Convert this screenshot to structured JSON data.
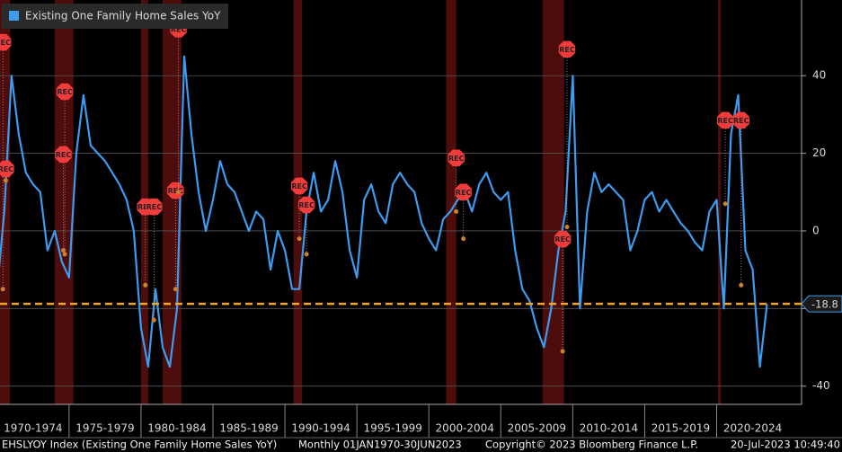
{
  "chart_data": {
    "type": "line",
    "footer_left": "EHSLYOY Index (Existing One Family Home Sales YoY)",
    "footer_mid": "Monthly 01JAN1970-30JUN2023",
    "footer_copyright": "Copyright© 2023 Bloomberg Finance L.P.",
    "footer_time": "20-Jul-2023 10:49:40",
    "x": [
      1970.0,
      1970.5,
      1971.0,
      1971.5,
      1972.0,
      1972.5,
      1973.0,
      1973.5,
      1974.0,
      1974.5,
      1975.0,
      1975.5,
      1976.0,
      1976.5,
      1977.0,
      1977.5,
      1978.0,
      1978.5,
      1979.0,
      1979.5,
      1980.0,
      1980.5,
      1981.0,
      1981.5,
      1982.0,
      1982.5,
      1983.0,
      1983.5,
      1984.0,
      1984.5,
      1985.0,
      1985.5,
      1986.0,
      1986.5,
      1987.0,
      1987.5,
      1988.0,
      1988.5,
      1989.0,
      1989.5,
      1990.0,
      1990.5,
      1991.0,
      1991.5,
      1992.0,
      1992.5,
      1993.0,
      1993.5,
      1994.0,
      1994.5,
      1995.0,
      1995.5,
      1996.0,
      1996.5,
      1997.0,
      1997.5,
      1998.0,
      1998.5,
      1999.0,
      1999.5,
      2000.0,
      2000.5,
      2001.0,
      2001.5,
      2002.0,
      2002.5,
      2003.0,
      2003.5,
      2004.0,
      2004.5,
      2005.0,
      2005.5,
      2006.0,
      2006.5,
      2007.0,
      2007.5,
      2008.0,
      2008.5,
      2009.0,
      2009.5,
      2010.0,
      2010.5,
      2011.0,
      2011.5,
      2012.0,
      2012.5,
      2013.0,
      2013.5,
      2014.0,
      2014.5,
      2015.0,
      2015.5,
      2016.0,
      2016.5,
      2017.0,
      2017.5,
      2018.0,
      2018.5,
      2019.0,
      2019.5,
      2020.0,
      2020.5,
      2021.0,
      2021.5,
      2022.0,
      2022.5,
      2023.0,
      2023.5
    ],
    "series": [
      {
        "name": "Existing One Family Home Sales YoY",
        "color": "#3d9bf0",
        "values": [
          -15,
          5,
          40,
          25,
          15,
          12,
          10,
          -5,
          0,
          -8,
          -12,
          20,
          35,
          22,
          20,
          18,
          15,
          12,
          8,
          0,
          -25,
          -35,
          -15,
          -30,
          -35,
          -20,
          45,
          25,
          10,
          0,
          8,
          18,
          12,
          10,
          5,
          0,
          5,
          3,
          -10,
          0,
          -5,
          -15,
          -15,
          5,
          15,
          5,
          8,
          18,
          10,
          -5,
          -12,
          8,
          12,
          5,
          2,
          12,
          15,
          12,
          10,
          2,
          -2,
          -5,
          3,
          5,
          8,
          10,
          5,
          12,
          15,
          10,
          8,
          10,
          -5,
          -15,
          -18,
          -25,
          -30,
          -20,
          -5,
          5,
          40,
          -20,
          5,
          15,
          10,
          12,
          10,
          8,
          -5,
          0,
          8,
          10,
          5,
          8,
          5,
          2,
          0,
          -3,
          -5,
          5,
          8,
          -20,
          25,
          35,
          -5,
          -10,
          -35,
          -18.8
        ]
      }
    ],
    "xlim": [
      1970.2,
      2025.9
    ],
    "xticks": [
      {
        "value": 1970,
        "label": "1970-1974"
      },
      {
        "value": 1975,
        "label": "1975-1979"
      },
      {
        "value": 1980,
        "label": "1980-1984"
      },
      {
        "value": 1985,
        "label": "1985-1989"
      },
      {
        "value": 1990,
        "label": "1990-1994"
      },
      {
        "value": 1995,
        "label": "1995-1999"
      },
      {
        "value": 2000,
        "label": "2000-2004"
      },
      {
        "value": 2005,
        "label": "2005-2009"
      },
      {
        "value": 2010,
        "label": "2010-2014"
      },
      {
        "value": 2015,
        "label": "2015-2019"
      },
      {
        "value": 2020,
        "label": "2020-2024"
      }
    ],
    "ylim": [
      -44.7,
      59.5
    ],
    "yticks": [
      -40,
      -20,
      0,
      20,
      40
    ],
    "grid": true,
    "reference_line": {
      "value": -18.8,
      "color": "#f7a51c"
    },
    "recessions": [
      [
        1970.0,
        1970.9
      ],
      [
        1974.0,
        1975.3
      ],
      [
        1980.0,
        1980.5
      ],
      [
        1981.5,
        1982.8
      ],
      [
        1990.6,
        1991.2
      ],
      [
        2001.2,
        2001.9
      ],
      [
        2007.9,
        2009.4
      ],
      [
        2020.1,
        2020.3
      ]
    ],
    "rec_markers": [
      {
        "label": "REC",
        "x": 1970.4,
        "y": 48.6,
        "dot": -15
      },
      {
        "label": "REC",
        "x": 1970.6,
        "y": 16,
        "dot": 13
      },
      {
        "label": "REC",
        "x": 1974.7,
        "y": 35.9,
        "dot": -6
      },
      {
        "label": "REC",
        "x": 1974.6,
        "y": 19.7,
        "dot": -5
      },
      {
        "label": "REC",
        "x": 1980.3,
        "y": 6.2,
        "dot": -14
      },
      {
        "label": "REC",
        "x": 1980.9,
        "y": 6.2,
        "dot": -23
      },
      {
        "label": "REC",
        "x": 1982.4,
        "y": 10.4,
        "dot": -15
      },
      {
        "label": "REC",
        "x": 1982.6,
        "y": 52,
        "dot": 10
      },
      {
        "label": "REC",
        "x": 1991.0,
        "y": 11.6,
        "dot": -2
      },
      {
        "label": "REC",
        "x": 1991.5,
        "y": 6.7,
        "dot": -6
      },
      {
        "label": "REC",
        "x": 2001.9,
        "y": 18.8,
        "dot": 5
      },
      {
        "label": "REC",
        "x": 2002.4,
        "y": 10,
        "dot": -2
      },
      {
        "label": "REC",
        "x": 2009.3,
        "y": -2.1,
        "dot": -31
      },
      {
        "label": "REC",
        "x": 2009.6,
        "y": 46.8,
        "dot": 1
      },
      {
        "label": "REC",
        "x": 2020.6,
        "y": 28.5,
        "dot": 7
      },
      {
        "label": "REC",
        "x": 2021.7,
        "y": 28.5,
        "dot": -14
      }
    ]
  }
}
